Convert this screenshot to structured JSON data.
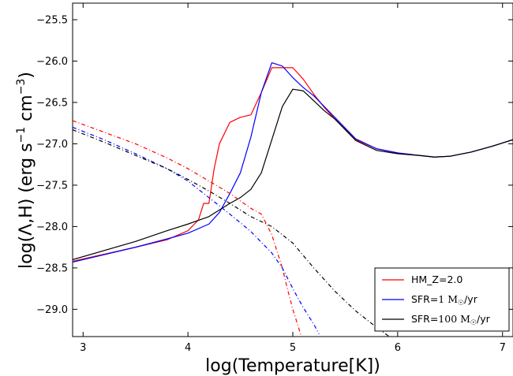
{
  "chart_data": {
    "type": "line",
    "title": "",
    "xlabel": "log(Temperature[K])",
    "ylabel": "log(Λ,H) (erg s⁻¹ cm⁻³)",
    "ylabel_parts": {
      "main": "log(Λ,H) (erg s",
      "exp1": "−1",
      "mid": " cm",
      "exp2": "−3",
      "end": ")"
    },
    "xlim": [
      2.9,
      7.1
    ],
    "ylim": [
      -29.33,
      -25.3
    ],
    "xticks": [
      3,
      4,
      5,
      6,
      7
    ],
    "xtick_labels": [
      "3",
      "4",
      "5",
      "6",
      "7"
    ],
    "yticks": [
      -29.0,
      -28.5,
      -28.0,
      -27.5,
      -27.0,
      -26.5,
      -26.0,
      -25.5
    ],
    "ytick_labels": [
      "−29.0",
      "−28.5",
      "−28.0",
      "−27.5",
      "−27.0",
      "−26.5",
      "−26.0",
      "−25.5"
    ],
    "grid": false,
    "legend_position": "bottom-right",
    "legend": [
      {
        "label": "HM_Z=2.0",
        "color": "#ff0000"
      },
      {
        "label": "SFR=1 M☉/yr",
        "label_parts": {
          "pre": "SFR",
          "mid": "=1 M",
          "sun": "☉",
          "post": "/yr"
        },
        "color": "#0000ff"
      },
      {
        "label": "SFR=100 M☉/yr",
        "label_parts": {
          "pre": "SFR",
          "mid": "=100 M",
          "sun": "☉",
          "post": "/yr"
        },
        "color": "#000000"
      }
    ],
    "series": [
      {
        "name": "HM_Z=2.0",
        "color": "#ff0000",
        "style": "solid",
        "kind": "cooling",
        "x": [
          2.9,
          3.5,
          3.8,
          4.0,
          4.1,
          4.15,
          4.2,
          4.25,
          4.3,
          4.4,
          4.5,
          4.6,
          4.7,
          4.8,
          4.9,
          5.0,
          5.1,
          5.2,
          5.3,
          5.4,
          5.6,
          5.8,
          6.0,
          6.2,
          6.35,
          6.5,
          6.7,
          6.9,
          7.1
        ],
        "y": [
          -28.42,
          -28.25,
          -28.16,
          -28.05,
          -27.92,
          -27.72,
          -27.72,
          -27.3,
          -27.0,
          -26.74,
          -26.68,
          -26.65,
          -26.38,
          -26.08,
          -26.08,
          -26.08,
          -26.22,
          -26.4,
          -26.56,
          -26.7,
          -26.95,
          -27.06,
          -27.11,
          -27.14,
          -27.16,
          -27.15,
          -27.1,
          -27.03,
          -26.95
        ]
      },
      {
        "name": "SFR=1 M☉/yr",
        "color": "#0000ff",
        "style": "solid",
        "kind": "cooling",
        "x": [
          2.9,
          3.5,
          3.8,
          4.0,
          4.2,
          4.3,
          4.4,
          4.5,
          4.6,
          4.7,
          4.8,
          4.9,
          5.0,
          5.1,
          5.2,
          5.3,
          5.4,
          5.6,
          5.8,
          6.0,
          6.2,
          6.35,
          6.5,
          6.7,
          6.9,
          7.1
        ],
        "y": [
          -28.43,
          -28.25,
          -28.15,
          -28.08,
          -27.97,
          -27.83,
          -27.6,
          -27.35,
          -26.92,
          -26.38,
          -26.02,
          -26.06,
          -26.2,
          -26.32,
          -26.42,
          -26.55,
          -26.68,
          -26.94,
          -27.06,
          -27.11,
          -27.14,
          -27.16,
          -27.15,
          -27.1,
          -27.03,
          -26.95
        ]
      },
      {
        "name": "SFR=100 M☉/yr",
        "color": "#000000",
        "style": "solid",
        "kind": "cooling",
        "x": [
          2.9,
          3.5,
          3.8,
          4.0,
          4.2,
          4.4,
          4.5,
          4.6,
          4.7,
          4.8,
          4.9,
          5.0,
          5.1,
          5.2,
          5.3,
          5.4,
          5.6,
          5.8,
          6.0,
          6.2,
          6.35,
          6.5,
          6.7,
          6.9,
          7.1
        ],
        "y": [
          -28.4,
          -28.18,
          -28.05,
          -27.97,
          -27.88,
          -27.72,
          -27.65,
          -27.55,
          -27.35,
          -26.95,
          -26.55,
          -26.34,
          -26.36,
          -26.48,
          -26.6,
          -26.7,
          -26.96,
          -27.08,
          -27.12,
          -27.14,
          -27.16,
          -27.15,
          -27.1,
          -27.03,
          -26.95
        ]
      },
      {
        "name": "HM_Z=2.0",
        "color": "#ff0000",
        "style": "dashdot",
        "kind": "heating",
        "x": [
          2.9,
          3.2,
          3.5,
          3.8,
          4.0,
          4.2,
          4.4,
          4.6,
          4.7,
          4.8,
          4.9,
          4.95,
          5.0,
          5.05,
          5.08
        ],
        "y": [
          -26.72,
          -26.86,
          -27.0,
          -27.17,
          -27.3,
          -27.45,
          -27.6,
          -27.78,
          -27.85,
          -28.1,
          -28.5,
          -28.76,
          -29.0,
          -29.2,
          -29.33
        ]
      },
      {
        "name": "SFR=1 M☉/yr",
        "color": "#0000ff",
        "style": "dashdot",
        "kind": "heating",
        "x": [
          2.9,
          3.2,
          3.5,
          3.8,
          4.0,
          4.2,
          4.4,
          4.6,
          4.8,
          4.9,
          5.0,
          5.1,
          5.2,
          5.25
        ],
        "y": [
          -26.8,
          -26.95,
          -27.12,
          -27.3,
          -27.45,
          -27.65,
          -27.85,
          -28.06,
          -28.32,
          -28.5,
          -28.75,
          -28.98,
          -29.18,
          -29.3
        ]
      },
      {
        "name": "SFR=100 M☉/yr",
        "color": "#000000",
        "style": "dashdot",
        "kind": "heating",
        "x": [
          2.9,
          3.2,
          3.5,
          3.8,
          4.0,
          4.2,
          4.4,
          4.6,
          4.8,
          5.0,
          5.2,
          5.4,
          5.6,
          5.8,
          5.92
        ],
        "y": [
          -26.83,
          -26.98,
          -27.14,
          -27.3,
          -27.43,
          -27.57,
          -27.72,
          -27.88,
          -28.0,
          -28.2,
          -28.5,
          -28.78,
          -29.02,
          -29.22,
          -29.33
        ]
      }
    ]
  }
}
